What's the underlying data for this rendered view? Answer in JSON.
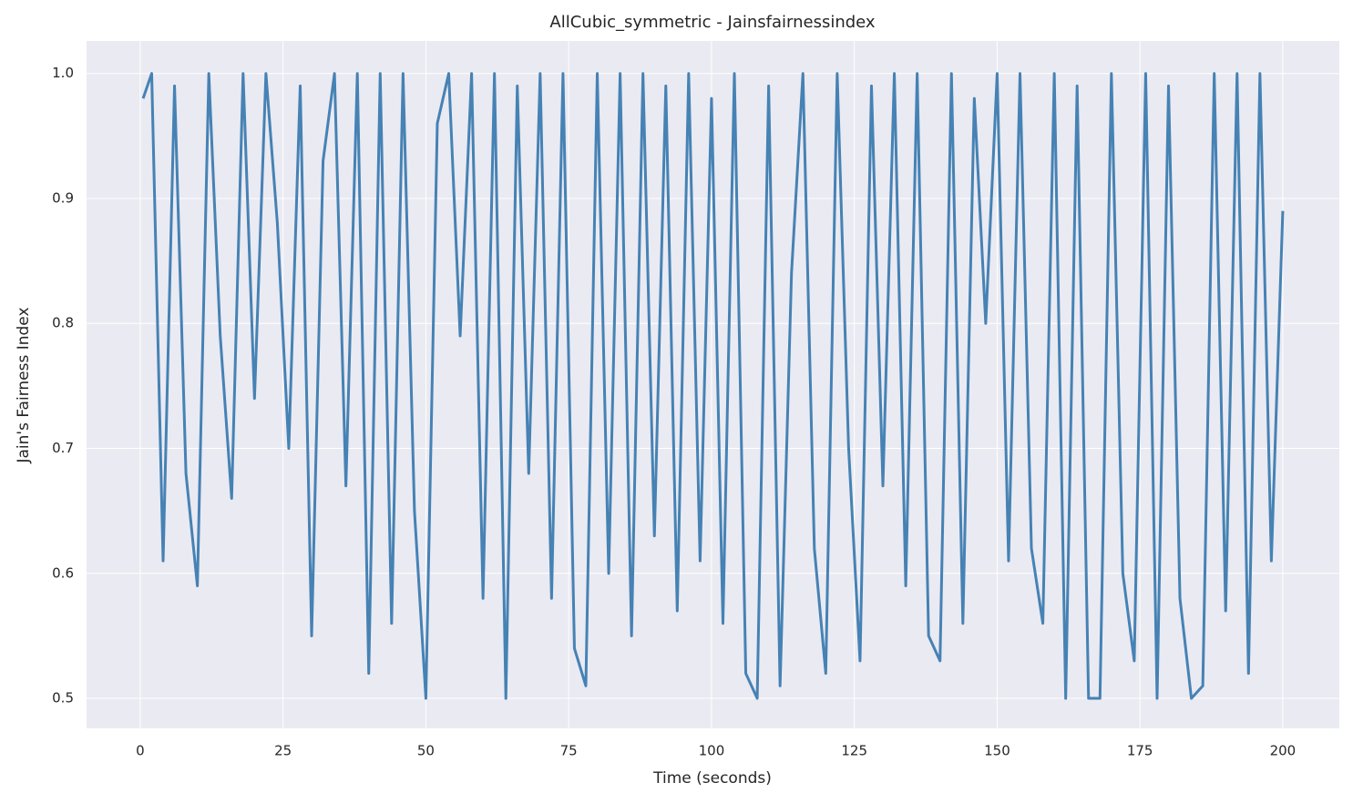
{
  "chart_data": {
    "type": "line",
    "title": "AllCubic_symmetric - Jainsfairnessindex",
    "x_label": "Time (seconds)",
    "y_label": "Jain's Fairness Index",
    "x": [
      0.5,
      2,
      4,
      6,
      8,
      10,
      12,
      14,
      16,
      18,
      20,
      22,
      24,
      26,
      28,
      30,
      32,
      34,
      36,
      38,
      40,
      42,
      44,
      46,
      48,
      50,
      52,
      54,
      56,
      58,
      60,
      62,
      64,
      66,
      68,
      70,
      72,
      74,
      76,
      78,
      80,
      82,
      84,
      86,
      88,
      90,
      92,
      94,
      96,
      98,
      100,
      102,
      104,
      106,
      108,
      110,
      112,
      114,
      116,
      118,
      120,
      122,
      124,
      126,
      128,
      130,
      132,
      134,
      136,
      138,
      140,
      142,
      144,
      146,
      148,
      150,
      152,
      154,
      156,
      158,
      160,
      162,
      164,
      166,
      168,
      170,
      172,
      174,
      176,
      178,
      180,
      182,
      184,
      186,
      188,
      190,
      192,
      194,
      196,
      198,
      200
    ],
    "series": [
      {
        "name": "Jain's Fairness Index",
        "color": "#4682b4",
        "values": [
          0.98,
          1.0,
          0.61,
          0.99,
          0.68,
          0.59,
          1.0,
          0.79,
          0.66,
          1.0,
          0.74,
          1.0,
          0.88,
          0.7,
          0.99,
          0.55,
          0.93,
          1.0,
          0.67,
          1.0,
          0.52,
          1.0,
          0.56,
          1.0,
          0.65,
          0.5,
          0.96,
          1.0,
          0.79,
          1.0,
          0.58,
          1.0,
          0.5,
          0.99,
          0.68,
          1.0,
          0.58,
          1.0,
          0.54,
          0.51,
          1.0,
          0.6,
          1.0,
          0.55,
          1.0,
          0.63,
          0.99,
          0.57,
          1.0,
          0.61,
          0.98,
          0.56,
          1.0,
          0.52,
          0.5,
          0.99,
          0.51,
          0.84,
          1.0,
          0.62,
          0.52,
          1.0,
          0.7,
          0.53,
          0.99,
          0.67,
          1.0,
          0.59,
          1.0,
          0.55,
          0.53,
          1.0,
          0.56,
          0.98,
          0.8,
          1.0,
          0.61,
          1.0,
          0.62,
          0.56,
          1.0,
          0.5,
          0.99,
          0.5,
          0.5,
          1.0,
          0.6,
          0.53,
          1.0,
          0.5,
          0.99,
          0.58,
          0.5,
          0.51,
          1.0,
          0.57,
          1.0,
          0.52,
          1.0,
          0.61,
          0.89
        ]
      }
    ],
    "xlim": [
      -9.4,
      209.9
    ],
    "ylim": [
      0.476,
      1.026
    ],
    "xticks": [
      0,
      25,
      50,
      75,
      100,
      125,
      150,
      175,
      200
    ],
    "yticks": [
      0.5,
      0.6,
      0.7,
      0.8,
      0.9,
      {
        "value": 1.0,
        "label": "1.0"
      }
    ],
    "grid": true
  }
}
